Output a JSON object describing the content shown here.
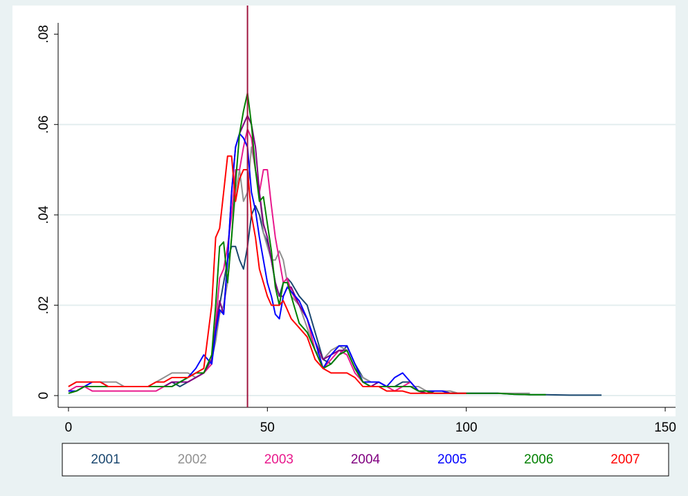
{
  "chart_data": {
    "type": "line",
    "x": [
      0,
      2,
      4,
      6,
      8,
      10,
      12,
      14,
      16,
      18,
      20,
      22,
      24,
      26,
      28,
      30,
      32,
      34,
      36,
      37,
      38,
      39,
      40,
      41,
      42,
      43,
      44,
      45,
      46,
      47,
      48,
      49,
      50,
      51,
      52,
      53,
      54,
      55,
      56,
      58,
      60,
      62,
      64,
      66,
      68,
      70,
      72,
      74,
      76,
      78,
      80,
      82,
      84,
      86,
      88,
      90,
      92,
      94,
      96,
      98,
      100,
      104,
      108,
      112,
      116,
      120,
      126,
      134
    ],
    "series": [
      {
        "name": "2001",
        "color": "#1a476f",
        "values": [
          0.001,
          0.001,
          0.002,
          0.002,
          0.002,
          0.002,
          0.002,
          0.002,
          0.002,
          0.002,
          0.002,
          0.002,
          0.002,
          0.003,
          0.002,
          0.003,
          0.004,
          0.005,
          0.008,
          0.015,
          0.02,
          0.025,
          0.03,
          0.033,
          0.033,
          0.03,
          0.028,
          0.033,
          0.04,
          0.042,
          0.04,
          0.036,
          0.034,
          0.03,
          0.025,
          0.022,
          0.025,
          0.026,
          0.025,
          0.022,
          0.02,
          0.014,
          0.008,
          0.007,
          0.009,
          0.011,
          0.007,
          0.004,
          0.003,
          0.003,
          0.002,
          0.002,
          0.003,
          0.003,
          0.001,
          0.001,
          0.001,
          0.001,
          0.0005,
          0.0005,
          0.0005,
          0.0005,
          0.0005,
          0.0003,
          0.0002,
          0.0002,
          0.0001,
          0.0001
        ]
      },
      {
        "name": "2002",
        "color": "#909090",
        "values": [
          0.002,
          0.003,
          0.003,
          0.003,
          0.003,
          0.003,
          0.003,
          0.002,
          0.002,
          0.002,
          0.002,
          0.003,
          0.004,
          0.005,
          0.005,
          0.005,
          0.004,
          0.005,
          0.008,
          0.012,
          0.018,
          0.02,
          0.025,
          0.035,
          0.045,
          0.05,
          0.043,
          0.045,
          0.055,
          0.05,
          0.045,
          0.036,
          0.033,
          0.03,
          0.03,
          0.032,
          0.03,
          0.025,
          0.022,
          0.02,
          0.015,
          0.01,
          0.008,
          0.01,
          0.011,
          0.01,
          0.006,
          0.004,
          0.003,
          0.003,
          0.002,
          0.002,
          0.002,
          0.002,
          0.002,
          0.001,
          0.001,
          0.001,
          0.001,
          0.0005,
          0.0005,
          0.0005,
          0.0005,
          0.0005,
          0.0005,
          null,
          null,
          null
        ]
      },
      {
        "name": "2003",
        "color": "#e8198c",
        "values": [
          0.001,
          0.002,
          0.002,
          0.001,
          0.001,
          0.001,
          0.001,
          0.001,
          0.001,
          0.001,
          0.001,
          0.001,
          0.002,
          0.003,
          0.003,
          0.003,
          0.004,
          0.005,
          0.007,
          0.016,
          0.026,
          0.028,
          0.033,
          0.04,
          0.05,
          0.05,
          0.055,
          0.059,
          0.057,
          0.05,
          0.045,
          0.05,
          0.05,
          0.042,
          0.035,
          0.03,
          0.025,
          0.026,
          0.023,
          0.02,
          0.017,
          0.01,
          0.006,
          0.008,
          0.01,
          0.009,
          0.005,
          0.003,
          0.003,
          0.003,
          0.002,
          0.001,
          0.002,
          0.003,
          0.001,
          0.0005,
          0.001,
          0.001,
          0.0005,
          0.0005,
          0.0005,
          null,
          null,
          null,
          null,
          null,
          null,
          null
        ]
      },
      {
        "name": "2004",
        "color": "#800080",
        "values": [
          0.001,
          0.001,
          0.002,
          0.002,
          0.002,
          0.002,
          0.002,
          0.002,
          0.002,
          0.002,
          0.002,
          0.002,
          0.002,
          0.003,
          0.003,
          0.003,
          0.004,
          0.005,
          0.008,
          0.015,
          0.021,
          0.018,
          0.03,
          0.045,
          0.055,
          0.058,
          0.06,
          0.062,
          0.06,
          0.055,
          0.045,
          0.038,
          0.035,
          0.03,
          0.025,
          0.022,
          0.022,
          0.024,
          0.024,
          0.02,
          0.017,
          0.012,
          0.008,
          0.009,
          0.01,
          0.01,
          0.006,
          0.003,
          0.002,
          0.003,
          0.002,
          0.002,
          0.002,
          0.002,
          0.001,
          0.0005,
          0.001,
          0.001,
          0.0005,
          0.0005,
          0.0005,
          null,
          null,
          null,
          null,
          null,
          null,
          null
        ]
      },
      {
        "name": "2005",
        "color": "#0000ff",
        "values": [
          0.001,
          0.001,
          0.002,
          0.003,
          0.003,
          0.002,
          0.002,
          0.002,
          0.002,
          0.002,
          0.002,
          0.002,
          0.002,
          0.002,
          0.003,
          0.004,
          0.006,
          0.009,
          0.007,
          0.014,
          0.019,
          0.018,
          0.03,
          0.045,
          0.055,
          0.058,
          0.057,
          0.055,
          0.045,
          0.041,
          0.035,
          0.03,
          0.025,
          0.022,
          0.018,
          0.017,
          0.022,
          0.024,
          0.023,
          0.021,
          0.017,
          0.012,
          0.006,
          0.009,
          0.011,
          0.011,
          0.007,
          0.003,
          0.003,
          0.003,
          0.002,
          0.004,
          0.005,
          0.003,
          0.001,
          0.001,
          0.001,
          0.001,
          0.0005,
          0.0005,
          0.0005,
          0.0005,
          0.0005,
          null,
          null,
          null,
          null,
          null
        ]
      },
      {
        "name": "2006",
        "color": "#008000",
        "values": [
          0.0005,
          0.001,
          0.002,
          0.002,
          0.002,
          0.002,
          0.002,
          0.002,
          0.002,
          0.002,
          0.002,
          0.002,
          0.002,
          0.002,
          0.003,
          0.004,
          0.005,
          0.005,
          0.009,
          0.02,
          0.033,
          0.034,
          0.025,
          0.035,
          0.047,
          0.058,
          0.063,
          0.067,
          0.06,
          0.05,
          0.043,
          0.044,
          0.038,
          0.032,
          0.024,
          0.02,
          0.025,
          0.025,
          0.022,
          0.016,
          0.014,
          0.01,
          0.006,
          0.007,
          0.009,
          0.01,
          0.006,
          0.003,
          0.002,
          0.002,
          0.002,
          0.002,
          0.002,
          0.002,
          0.001,
          0.001,
          0.0005,
          0.0005,
          0.0005,
          0.0005,
          0.0005,
          0.0005,
          0.0005,
          0.0003,
          0.0002,
          0.0002,
          null,
          null
        ]
      },
      {
        "name": "2007",
        "color": "#ff0000",
        "values": [
          0.002,
          0.003,
          0.003,
          0.003,
          0.003,
          0.002,
          0.002,
          0.002,
          0.002,
          0.002,
          0.002,
          0.003,
          0.003,
          0.004,
          0.004,
          0.004,
          0.005,
          0.006,
          0.02,
          0.035,
          0.037,
          0.045,
          0.053,
          0.053,
          0.043,
          0.048,
          0.05,
          0.05,
          0.04,
          0.035,
          0.028,
          0.025,
          0.022,
          0.02,
          0.02,
          0.02,
          0.021,
          0.019,
          0.017,
          0.015,
          0.013,
          0.008,
          0.006,
          0.005,
          0.005,
          0.005,
          0.004,
          0.002,
          0.002,
          0.002,
          0.001,
          0.001,
          0.001,
          0.0005,
          0.0005,
          0.0005,
          0.0005,
          0.0005,
          0.0005,
          0.0005,
          0.0005,
          null,
          null,
          null,
          null,
          null,
          null,
          null
        ]
      }
    ],
    "xlim": [
      -2.6,
      152.6
    ],
    "xticks": [
      0,
      50,
      100,
      150
    ],
    "ylim": [
      -0.0026,
      0.0825
    ],
    "yticks": [
      0,
      {
        "value": 0.02,
        "label": ".02"
      },
      {
        "value": 0.04,
        "label": ".04"
      },
      {
        "value": 0.06,
        "label": ".06"
      },
      {
        "value": 0.08,
        "label": ".08"
      }
    ],
    "grid": true,
    "vline": 45,
    "vline_color": "#a0153e",
    "legend": "bottom"
  }
}
